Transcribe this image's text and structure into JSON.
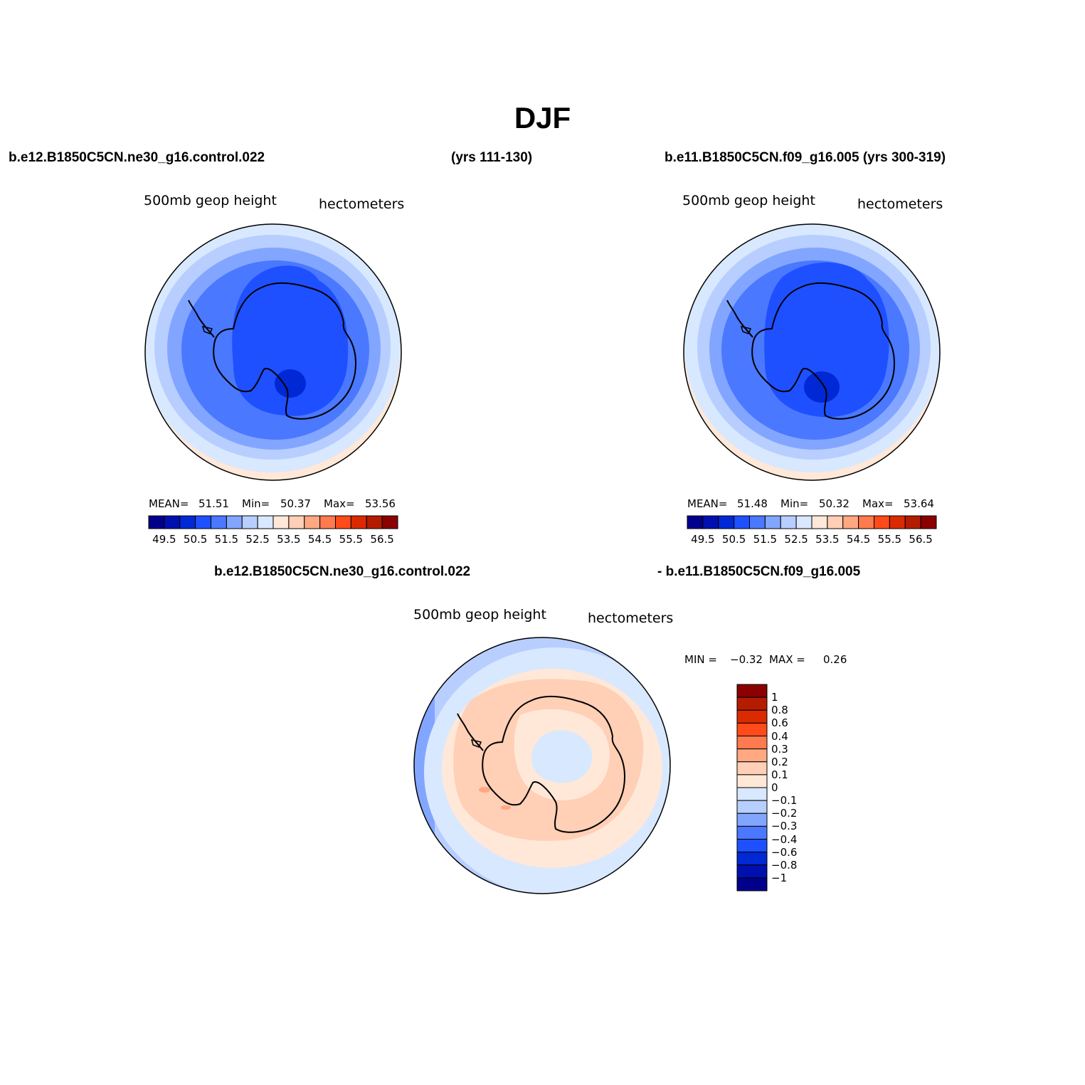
{
  "title": "DJF",
  "case1": {
    "name": "b.e12.B1850C5CN.ne30_g16.control.022",
    "years": "(yrs 111-130)"
  },
  "case2": {
    "name": "b.e11.B1850C5CN.f09_g16.005 (yrs 300-319)"
  },
  "diff_case1": "b.e12.B1850C5CN.ne30_g16.control.022",
  "diff_case2": "- b.e11.B1850C5CN.f09_g16.005",
  "field": {
    "name": "500mb  geop  height",
    "units": "hectometers"
  },
  "panel1_stats": {
    "mean_label": "MEAN=",
    "mean": "51.51",
    "min_label": "Min=",
    "min": "50.37",
    "max_label": "Max=",
    "max": "53.56"
  },
  "panel2_stats": {
    "mean_label": "MEAN=",
    "mean": "51.48",
    "min_label": "Min=",
    "min": "50.32",
    "max_label": "Max=",
    "max": "53.64"
  },
  "diff_stats": {
    "min_label": "MIN =",
    "min": "−0.32",
    "max_label": "MAX =",
    "max": "0.26"
  },
  "colorbar_main": {
    "colors": [
      "#00008b",
      "#0010b0",
      "#0028d4",
      "#1e50ff",
      "#4a78ff",
      "#82a6ff",
      "#b8ceff",
      "#d8e8ff",
      "#ffe8d8",
      "#ffcfb6",
      "#ffa882",
      "#ff7a4e",
      "#ff4a1a",
      "#dc2a00",
      "#b41c00",
      "#8b0000"
    ],
    "labels": [
      "49.5",
      "50.5",
      "51.5",
      "52.5",
      "53.5",
      "54.5",
      "55.5",
      "56.5"
    ]
  },
  "colorbar_diff": {
    "colors": [
      "#8b0000",
      "#b41c00",
      "#dc2a00",
      "#ff4a1a",
      "#ff7a4e",
      "#ffa882",
      "#ffcfb6",
      "#ffe8d8",
      "#d8e8ff",
      "#b8ceff",
      "#82a6ff",
      "#4a78ff",
      "#1e50ff",
      "#0028d4",
      "#0010b0",
      "#00008b"
    ],
    "labels": [
      "1",
      "0.8",
      "0.6",
      "0.4",
      "0.3",
      "0.2",
      "0.1",
      "0",
      "−0.1",
      "−0.2",
      "−0.3",
      "−0.4",
      "−0.6",
      "−0.8",
      "−1"
    ]
  },
  "map_colors": {
    "blue_deep": "#0028d4",
    "blue_strong": "#1e50ff",
    "blue_mid": "#4a78ff",
    "blue_light": "#82a6ff",
    "blue_pale": "#b8ceff",
    "blue_faint": "#d8e8ff",
    "orange_faint": "#ffe8d8",
    "orange_pale": "#ffcfb6",
    "orange_mid": "#ffa882"
  }
}
